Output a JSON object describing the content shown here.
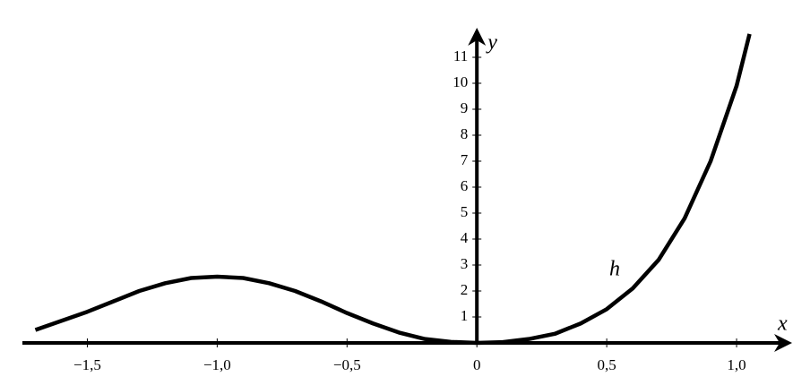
{
  "chart_data": {
    "type": "line",
    "x_label": "x",
    "y_label": "y",
    "annotation": "h",
    "x": [
      -1.7,
      -1.6,
      -1.5,
      -1.4,
      -1.3,
      -1.2,
      -1.1,
      -1.0,
      -0.9,
      -0.8,
      -0.7,
      -0.6,
      -0.5,
      -0.4,
      -0.3,
      -0.2,
      -0.1,
      0,
      0.1,
      0.2,
      0.3,
      0.4,
      0.5,
      0.6,
      0.7,
      0.8,
      0.9,
      1.0,
      1.05
    ],
    "series": [
      {
        "name": "h",
        "color": "#000000",
        "values": [
          0.5,
          0.85,
          1.2,
          1.6,
          2.0,
          2.3,
          2.5,
          2.55,
          2.5,
          2.3,
          2.0,
          1.6,
          1.15,
          0.75,
          0.4,
          0.15,
          0.04,
          0,
          0.03,
          0.15,
          0.35,
          0.75,
          1.3,
          2.1,
          3.2,
          4.8,
          7.0,
          9.9,
          11.9
        ]
      }
    ],
    "xlim": [
      -1.75,
      1.2
    ],
    "ylim": [
      0,
      12
    ],
    "xticks": [
      {
        "value": -1.5,
        "label": "−1,5"
      },
      {
        "value": -1.0,
        "label": "−1,0"
      },
      {
        "value": -0.5,
        "label": "−0,5"
      },
      0,
      {
        "value": 0.5,
        "label": "0,5"
      },
      {
        "value": 1.0,
        "label": "1,0"
      }
    ],
    "yticks": [
      1,
      2,
      3,
      4,
      5,
      6,
      7,
      8,
      9,
      10,
      11
    ]
  }
}
